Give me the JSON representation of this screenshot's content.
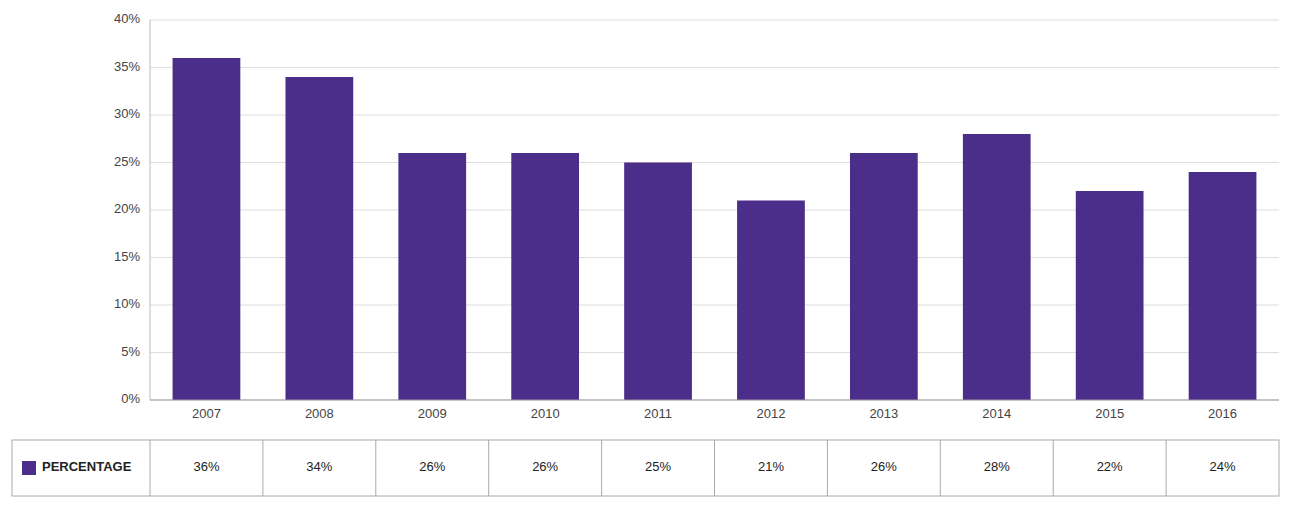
{
  "chart_data": {
    "type": "bar",
    "categories": [
      "2007",
      "2008",
      "2009",
      "2010",
      "2011",
      "2012",
      "2013",
      "2014",
      "2015",
      "2016"
    ],
    "series": [
      {
        "name": "PERCENTAGE",
        "color": "#4B2D8A",
        "values": [
          36,
          34,
          26,
          26,
          25,
          21,
          26,
          28,
          22,
          24
        ],
        "value_labels": [
          "36%",
          "34%",
          "26%",
          "26%",
          "25%",
          "21%",
          "26%",
          "28%",
          "22%",
          "24%"
        ]
      }
    ],
    "ylim": [
      0,
      40
    ],
    "yticks": [
      {
        "value": 0,
        "label": "0%"
      },
      {
        "value": 5,
        "label": "5%"
      },
      {
        "value": 10,
        "label": "10%"
      },
      {
        "value": 15,
        "label": "15%"
      },
      {
        "value": 20,
        "label": "20%"
      },
      {
        "value": 25,
        "label": "25%"
      },
      {
        "value": 30,
        "label": "30%"
      },
      {
        "value": 35,
        "label": "35%"
      },
      {
        "value": 40,
        "label": "40%"
      }
    ],
    "grid": true,
    "legend": "bottom"
  }
}
